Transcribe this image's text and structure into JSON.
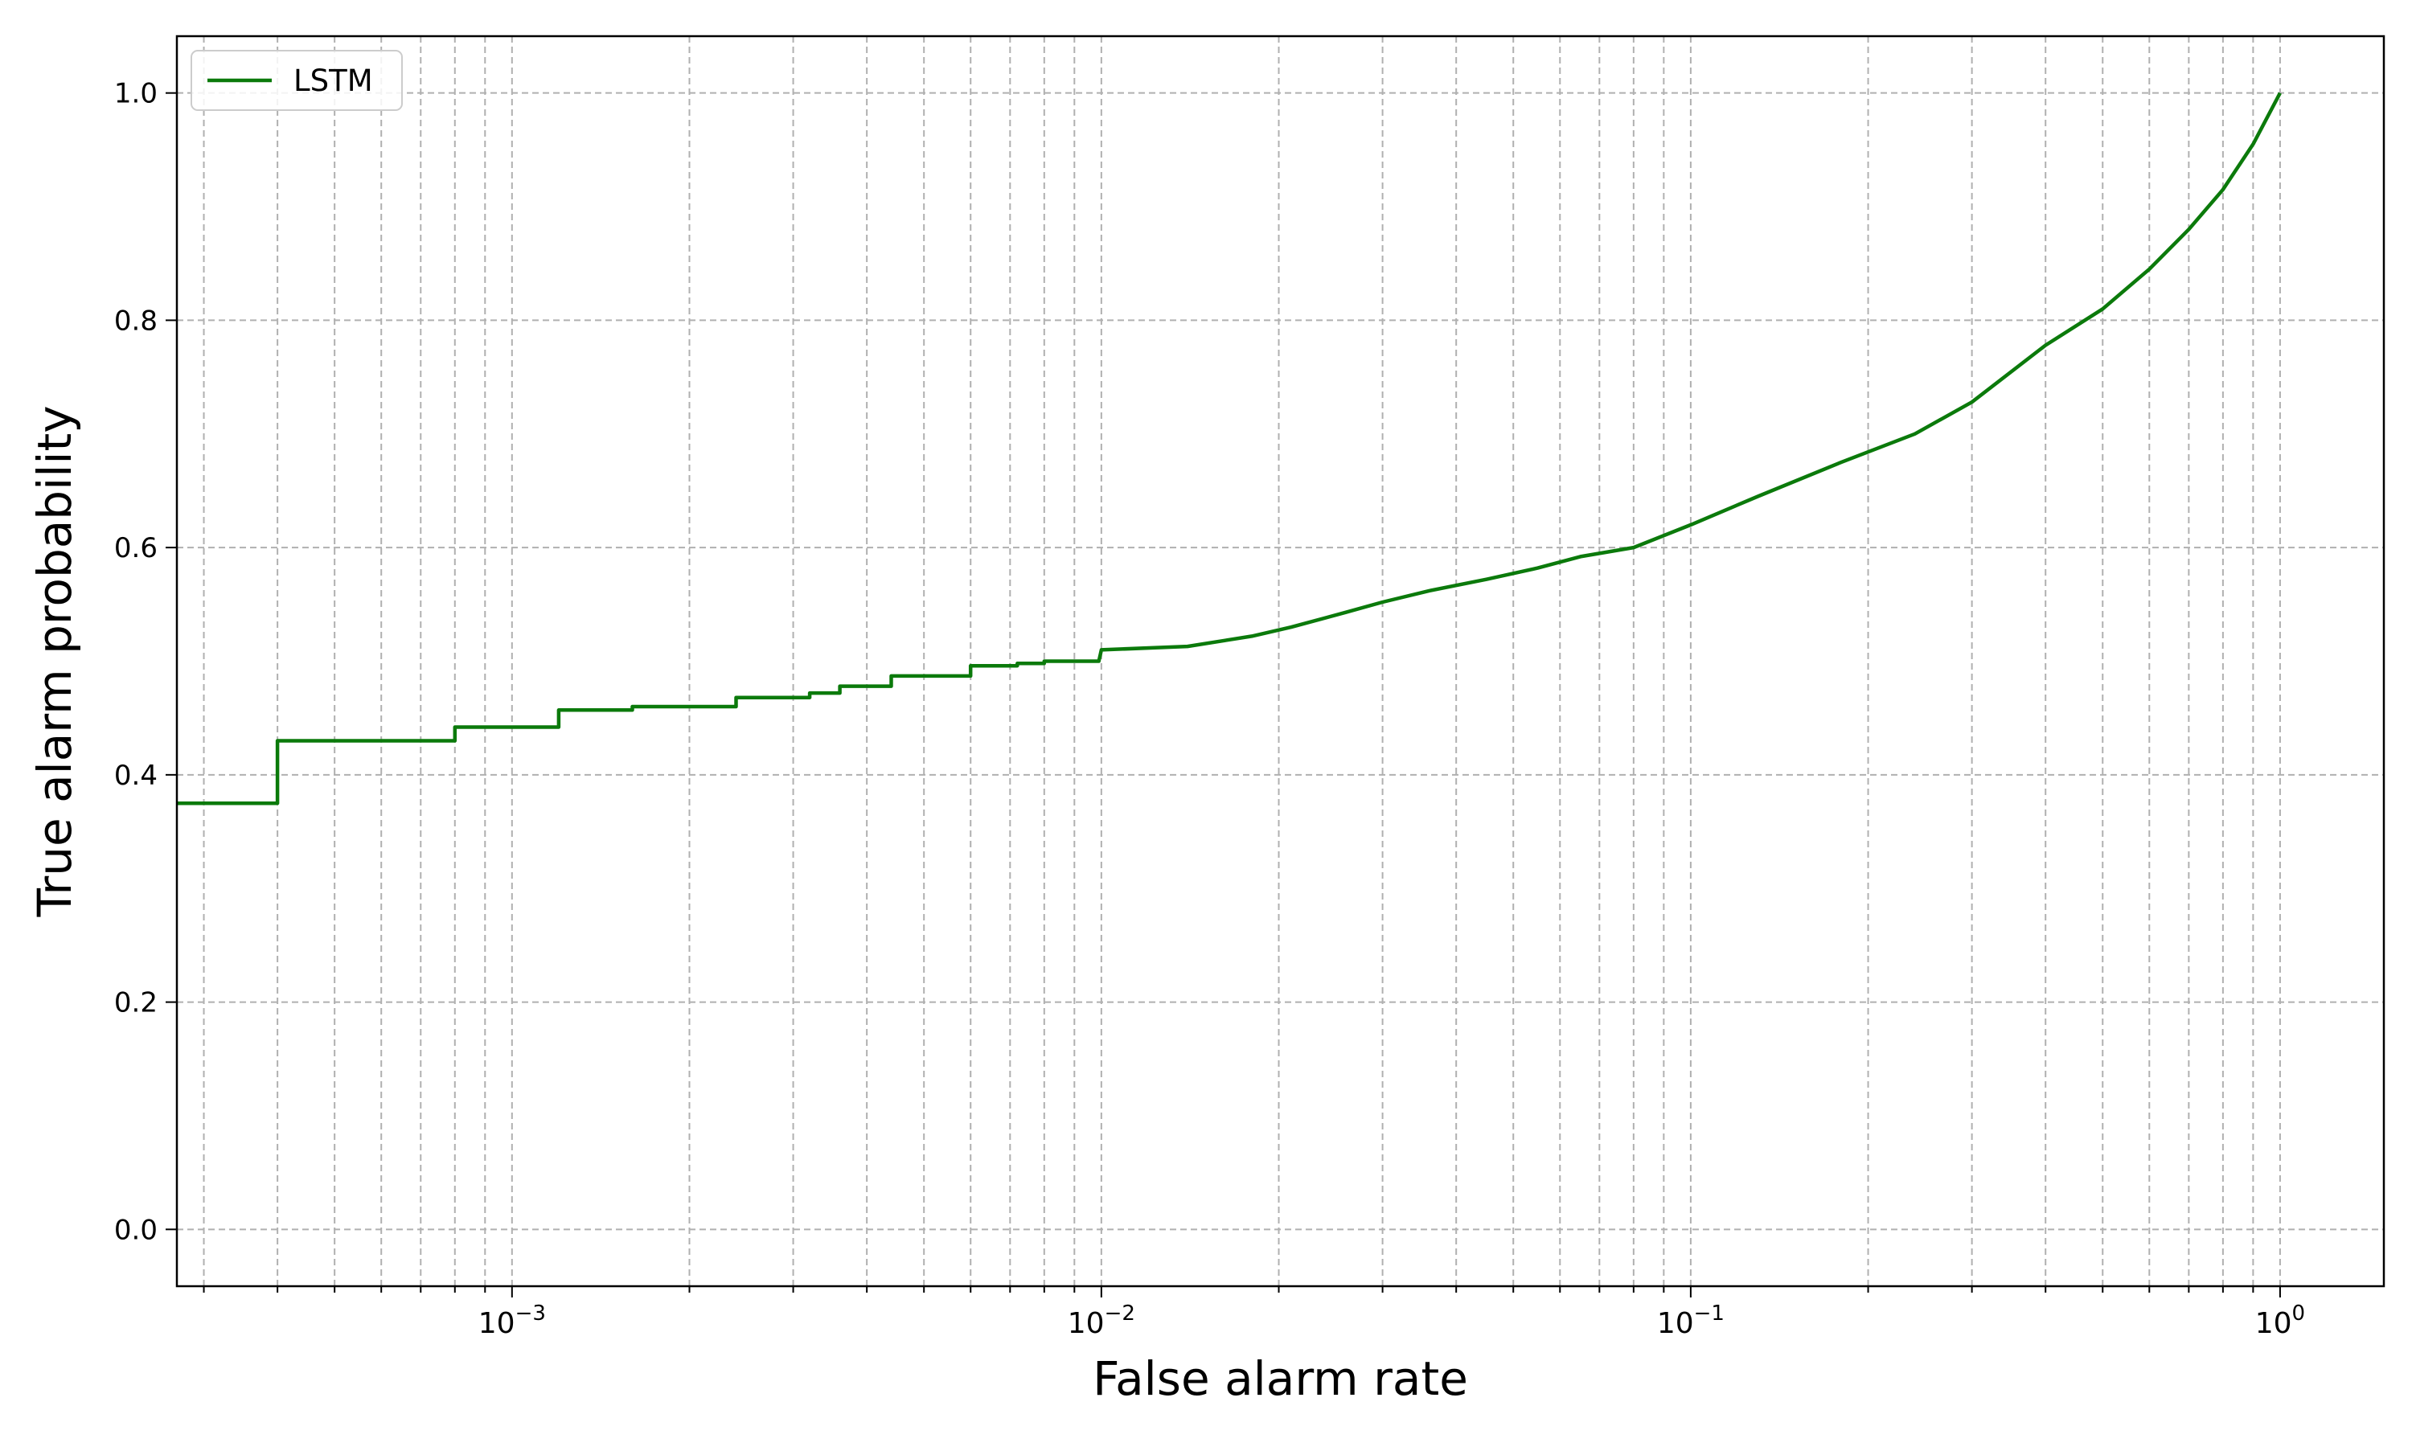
{
  "chart_data": {
    "type": "line",
    "title": "",
    "xlabel": "False alarm rate",
    "ylabel": "True alarm probability",
    "xscale": "log",
    "xlim": [
      0.00027,
      1.5
    ],
    "ylim": [
      -0.05,
      1.05
    ],
    "xticks": [
      {
        "value": 0.001,
        "base": "10",
        "exp": "−3"
      },
      {
        "value": 0.01,
        "base": "10",
        "exp": "−2"
      },
      {
        "value": 0.1,
        "base": "10",
        "exp": "−1"
      },
      {
        "value": 1,
        "base": "10",
        "exp": "0"
      }
    ],
    "yticks": [
      "0.0",
      "0.2",
      "0.4",
      "0.6",
      "0.8",
      "1.0"
    ],
    "grid": true,
    "grid_minor_x": true,
    "legend": {
      "position": "top-left"
    },
    "colors": {
      "line": "#0b7a0b",
      "grid": "#b0b0b0"
    },
    "series": [
      {
        "name": "LSTM",
        "x": [
          0.00027,
          0.0004,
          0.0004,
          0.0008,
          0.0008,
          0.0012,
          0.0012,
          0.0016,
          0.0016,
          0.0024,
          0.0024,
          0.0032,
          0.0032,
          0.0036,
          0.0036,
          0.0044,
          0.0044,
          0.006,
          0.006,
          0.0072,
          0.0072,
          0.008,
          0.008,
          0.0099,
          0.01,
          0.014,
          0.018,
          0.021,
          0.026,
          0.03,
          0.036,
          0.045,
          0.055,
          0.065,
          0.08,
          0.1,
          0.13,
          0.18,
          0.24,
          0.3,
          0.4,
          0.5,
          0.6,
          0.7,
          0.8,
          0.9,
          1.0
        ],
        "y": [
          0.375,
          0.375,
          0.43,
          0.43,
          0.442,
          0.442,
          0.457,
          0.457,
          0.46,
          0.46,
          0.468,
          0.468,
          0.472,
          0.472,
          0.478,
          0.478,
          0.487,
          0.487,
          0.496,
          0.496,
          0.498,
          0.498,
          0.5,
          0.5,
          0.51,
          0.513,
          0.522,
          0.53,
          0.543,
          0.552,
          0.562,
          0.572,
          0.582,
          0.592,
          0.6,
          0.62,
          0.645,
          0.675,
          0.7,
          0.728,
          0.778,
          0.81,
          0.845,
          0.88,
          0.915,
          0.955,
          1.0
        ]
      }
    ]
  }
}
